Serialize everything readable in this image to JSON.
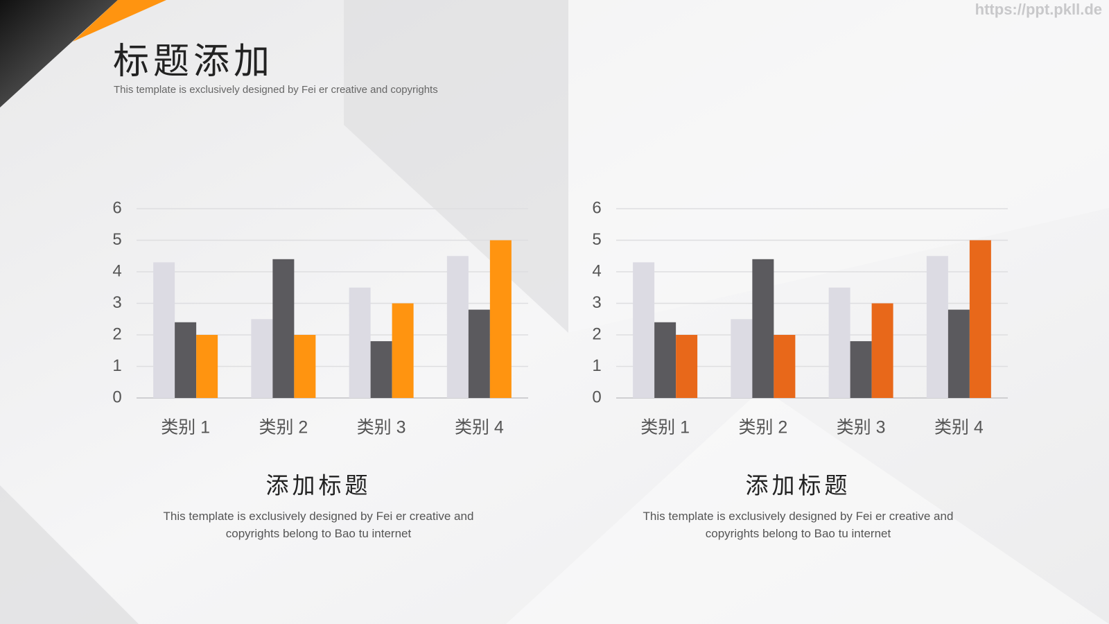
{
  "header": {
    "title": "标题添加",
    "subtitle": "This template is exclusively designed by Fei er creative and copyrights"
  },
  "watermark": "https://ppt.pkll.de",
  "chart_data": [
    {
      "type": "bar",
      "title": "添加标题",
      "caption": "This template is exclusively designed by Fei er creative and copyrights belong to Bao tu internet",
      "categories": [
        "类别 1",
        "类别 2",
        "类别 3",
        "类别 4"
      ],
      "series": [
        {
          "color": "#dcdbe3",
          "values": [
            4.3,
            2.5,
            3.5,
            4.5
          ]
        },
        {
          "color": "#5b5a5e",
          "values": [
            2.4,
            4.4,
            1.8,
            2.8
          ]
        },
        {
          "color": "#ff9410",
          "values": [
            2,
            2,
            3,
            5
          ]
        }
      ],
      "ylim": [
        0,
        6
      ],
      "yticks": [
        0,
        1,
        2,
        3,
        4,
        5,
        6
      ],
      "grid": true
    },
    {
      "type": "bar",
      "title": "添加标题",
      "caption": "This template is exclusively designed by Fei er creative and copyrights belong to Bao tu internet",
      "categories": [
        "类别 1",
        "类别 2",
        "类别 3",
        "类别 4"
      ],
      "series": [
        {
          "color": "#dcdbe3",
          "values": [
            4.3,
            2.5,
            3.5,
            4.5
          ]
        },
        {
          "color": "#5b5a5e",
          "values": [
            2.4,
            4.4,
            1.8,
            2.8
          ]
        },
        {
          "color": "#e8681a",
          "values": [
            2,
            2,
            3,
            5
          ]
        }
      ],
      "ylim": [
        0,
        6
      ],
      "yticks": [
        0,
        1,
        2,
        3,
        4,
        5,
        6
      ],
      "grid": true
    }
  ]
}
